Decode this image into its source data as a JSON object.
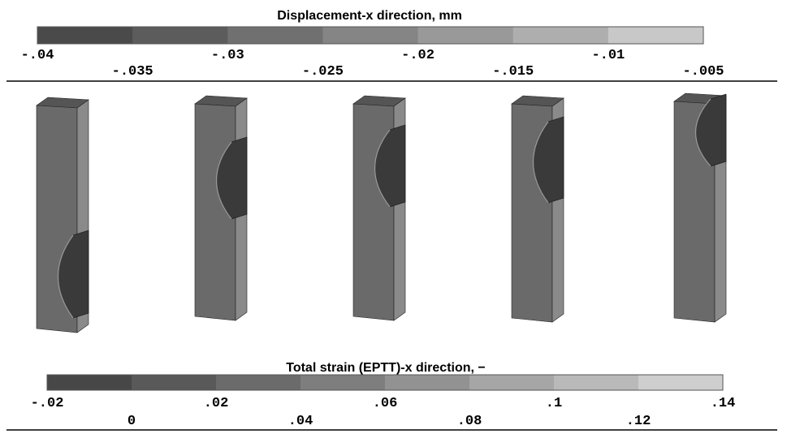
{
  "top": {
    "title": "Displacement-x direction, mm",
    "colors": [
      "#4a4a4a",
      "#5c5c5c",
      "#707070",
      "#858585",
      "#999999",
      "#aeaeae",
      "#c8c8c8"
    ],
    "tick_labels": [
      "-.04",
      "-.035",
      "-.03",
      "-.025",
      "-.02",
      "-.015",
      "-.01",
      "-.005"
    ]
  },
  "bottom": {
    "title": "Total strain (EPTT)-x direction, −",
    "colors": [
      "#474747",
      "#595959",
      "#6b6b6b",
      "#7e7e7e",
      "#929292",
      "#a6a6a6",
      "#b9b9b9",
      "#cecece"
    ],
    "tick_labels": [
      "-.02",
      "0",
      ".02",
      ".04",
      ".06",
      ".08",
      ".1",
      ".12",
      ".14"
    ]
  }
}
